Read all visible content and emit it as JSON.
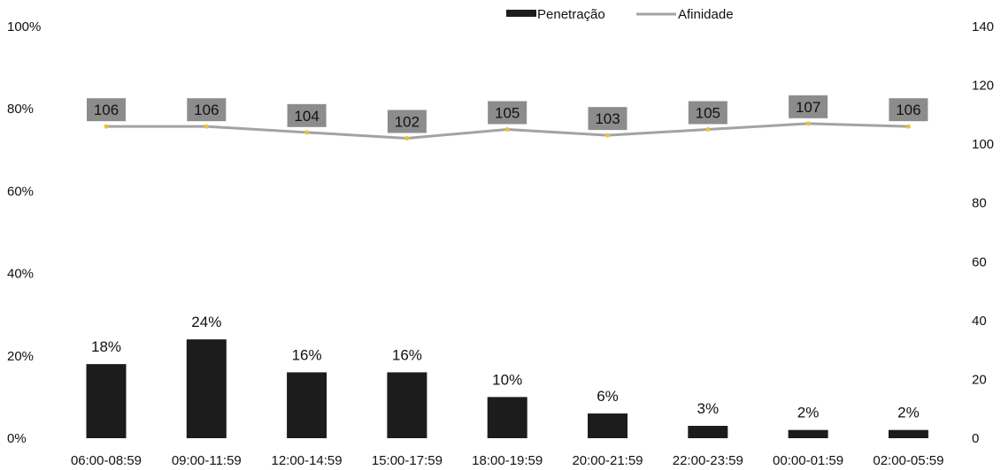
{
  "chart_data": {
    "type": "bar",
    "categories": [
      "06:00-08:59",
      "09:00-11:59",
      "12:00-14:59",
      "15:00-17:59",
      "18:00-19:59",
      "20:00-21:59",
      "22:00-23:59",
      "00:00-01:59",
      "02:00-05:59"
    ],
    "series": [
      {
        "name": "Penetração",
        "type": "bar",
        "axis": "left",
        "values": [
          18,
          24,
          16,
          16,
          10,
          6,
          3,
          2,
          2
        ],
        "labels": [
          "18%",
          "24%",
          "16%",
          "16%",
          "10%",
          "6%",
          "3%",
          "2%",
          "2%"
        ],
        "color": "#1c1c1c"
      },
      {
        "name": "Afinidade",
        "type": "line",
        "axis": "right",
        "values": [
          106,
          106,
          104,
          102,
          105,
          103,
          105,
          107,
          106
        ],
        "labels": [
          "106",
          "106",
          "104",
          "102",
          "105",
          "103",
          "105",
          "107",
          "106"
        ],
        "color": "#a3a3a3",
        "marker_color": "#e8c23a",
        "label_box_color": "#8c8c8c"
      }
    ],
    "left_axis": {
      "ylim": [
        0,
        100
      ],
      "ticks": [
        0,
        20,
        40,
        60,
        80,
        100
      ],
      "tick_labels": [
        "0%",
        "20%",
        "40%",
        "60%",
        "80%",
        "100%"
      ]
    },
    "right_axis": {
      "ylim": [
        0,
        140
      ],
      "ticks": [
        0,
        20,
        40,
        60,
        80,
        100,
        120,
        140
      ],
      "tick_labels": [
        "0",
        "20",
        "40",
        "60",
        "80",
        "100",
        "120",
        "140"
      ]
    },
    "grid": false,
    "legend_position": "top-center"
  }
}
